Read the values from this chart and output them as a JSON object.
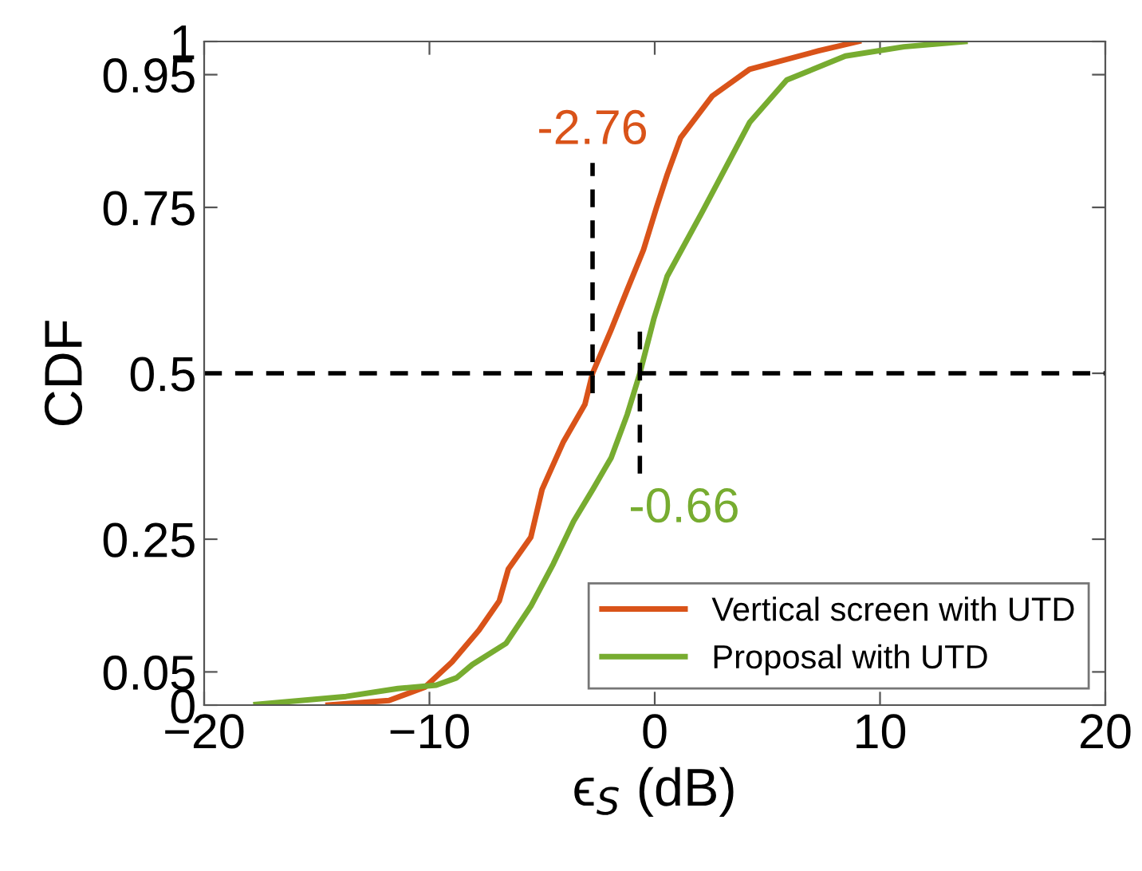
{
  "chart_data": {
    "type": "line",
    "xlabel": "ϵ$_{S}$ (dB)",
    "ylabel": "CDF",
    "xlim": [
      -20,
      20
    ],
    "xticks": [
      -20,
      -10,
      0,
      10,
      20
    ],
    "ylim": [
      0,
      1
    ],
    "yticks": [
      0,
      0.05,
      0.25,
      0.5,
      0.75,
      0.95,
      1
    ],
    "grid": false,
    "legend": "bottom right",
    "line_style": "solid",
    "marker": "none",
    "series": [
      {
        "name": "Vertical screen with UTD",
        "color": "#d95319",
        "x": [
          -14.5,
          -11.8,
          -10.2,
          -9.0,
          -7.8,
          -6.9,
          -6.5,
          -5.5,
          -5.0,
          -4.05,
          -3.1,
          -2.76,
          -1.93,
          -1.22,
          -0.5,
          0.08,
          0.56,
          1.15,
          2.56,
          4.21,
          7.28,
          9.05
        ],
        "values": [
          0,
          0.007,
          0.027,
          0.065,
          0.113,
          0.157,
          0.205,
          0.253,
          0.325,
          0.397,
          0.453,
          0.5,
          0.566,
          0.626,
          0.686,
          0.75,
          0.8,
          0.855,
          0.918,
          0.958,
          0.986,
          1
        ]
      },
      {
        "name": "Proposal with UTD",
        "color": "#77ac30",
        "x": [
          -17.7,
          -13.7,
          -11.4,
          -9.7,
          -8.8,
          -8.1,
          -6.6,
          -5.5,
          -4.5,
          -3.6,
          -2.75,
          -1.93,
          -1.22,
          -0.66,
          -0.04,
          0.55,
          2.09,
          4.21,
          5.86,
          8.46,
          11.06,
          13.77
        ],
        "values": [
          0.001,
          0.013,
          0.025,
          0.03,
          0.041,
          0.061,
          0.093,
          0.149,
          0.213,
          0.277,
          0.325,
          0.373,
          0.438,
          0.5,
          0.582,
          0.646,
          0.742,
          0.878,
          0.942,
          0.978,
          0.992,
          1
        ]
      },
      {
        "color": "#000000",
        "line_style": "dashed",
        "x": [
          -2.76,
          -2.76
        ],
        "values": [
          0.47,
          0.817
        ]
      },
      {
        "color": "#000000",
        "line_style": "dashed",
        "x": [
          -0.66,
          -0.66
        ],
        "values": [
          0.349,
          0.565
        ]
      }
    ],
    "ref_lines": [
      {
        "axis": "y",
        "value": 0.5,
        "color": "#000000",
        "line_style": "dashed"
      }
    ],
    "annotations": [
      {
        "text": "-2.76",
        "x": -2.76,
        "y": 0.817
      },
      {
        "text": "-0.66",
        "x": -0.66,
        "y": 0.349
      }
    ]
  }
}
